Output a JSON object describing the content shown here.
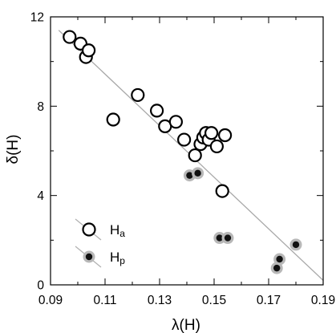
{
  "chart_data": {
    "type": "scatter",
    "xlabel": "λ(H)",
    "ylabel": "δ(H)",
    "xlim": [
      0.09,
      0.19
    ],
    "ylim": [
      0,
      12
    ],
    "xticks": [
      "0.09",
      "0.11",
      "0.13",
      "0.15",
      "0.17",
      "0.19"
    ],
    "xtick_values": [
      0.09,
      0.11,
      0.13,
      0.15,
      0.17,
      0.19
    ],
    "yticks": [
      "0",
      "4",
      "8",
      "12"
    ],
    "ytick_values": [
      0,
      4,
      8,
      12
    ],
    "minor_x_step": 0.01,
    "minor_y_step": 2,
    "grid": false,
    "legend_position": "bottom-left",
    "trend_line": {
      "x": [
        0.093,
        0.19
      ],
      "y": [
        11.4,
        0.2
      ],
      "color": "#a8a8a8"
    },
    "series": [
      {
        "name": "H",
        "name_subscript": "a",
        "marker": "open-circle",
        "color": "#000000",
        "x": [
          0.097,
          0.101,
          0.103,
          0.104,
          0.113,
          0.122,
          0.129,
          0.132,
          0.136,
          0.139,
          0.143,
          0.145,
          0.146,
          0.147,
          0.148,
          0.149,
          0.151,
          0.153,
          0.154
        ],
        "y": [
          11.1,
          10.8,
          10.2,
          10.5,
          7.4,
          8.5,
          7.8,
          7.1,
          7.3,
          6.5,
          5.8,
          6.3,
          6.6,
          6.8,
          6.5,
          6.8,
          6.2,
          4.2,
          6.7
        ]
      },
      {
        "name": "H",
        "name_subscript": "p",
        "marker": "filled-circle",
        "color": "#111111",
        "halo": "#b8b8b8",
        "x": [
          0.141,
          0.144,
          0.152,
          0.155,
          0.173,
          0.174,
          0.18
        ],
        "y": [
          4.9,
          5.0,
          2.1,
          2.1,
          0.75,
          1.15,
          1.8
        ]
      }
    ]
  }
}
